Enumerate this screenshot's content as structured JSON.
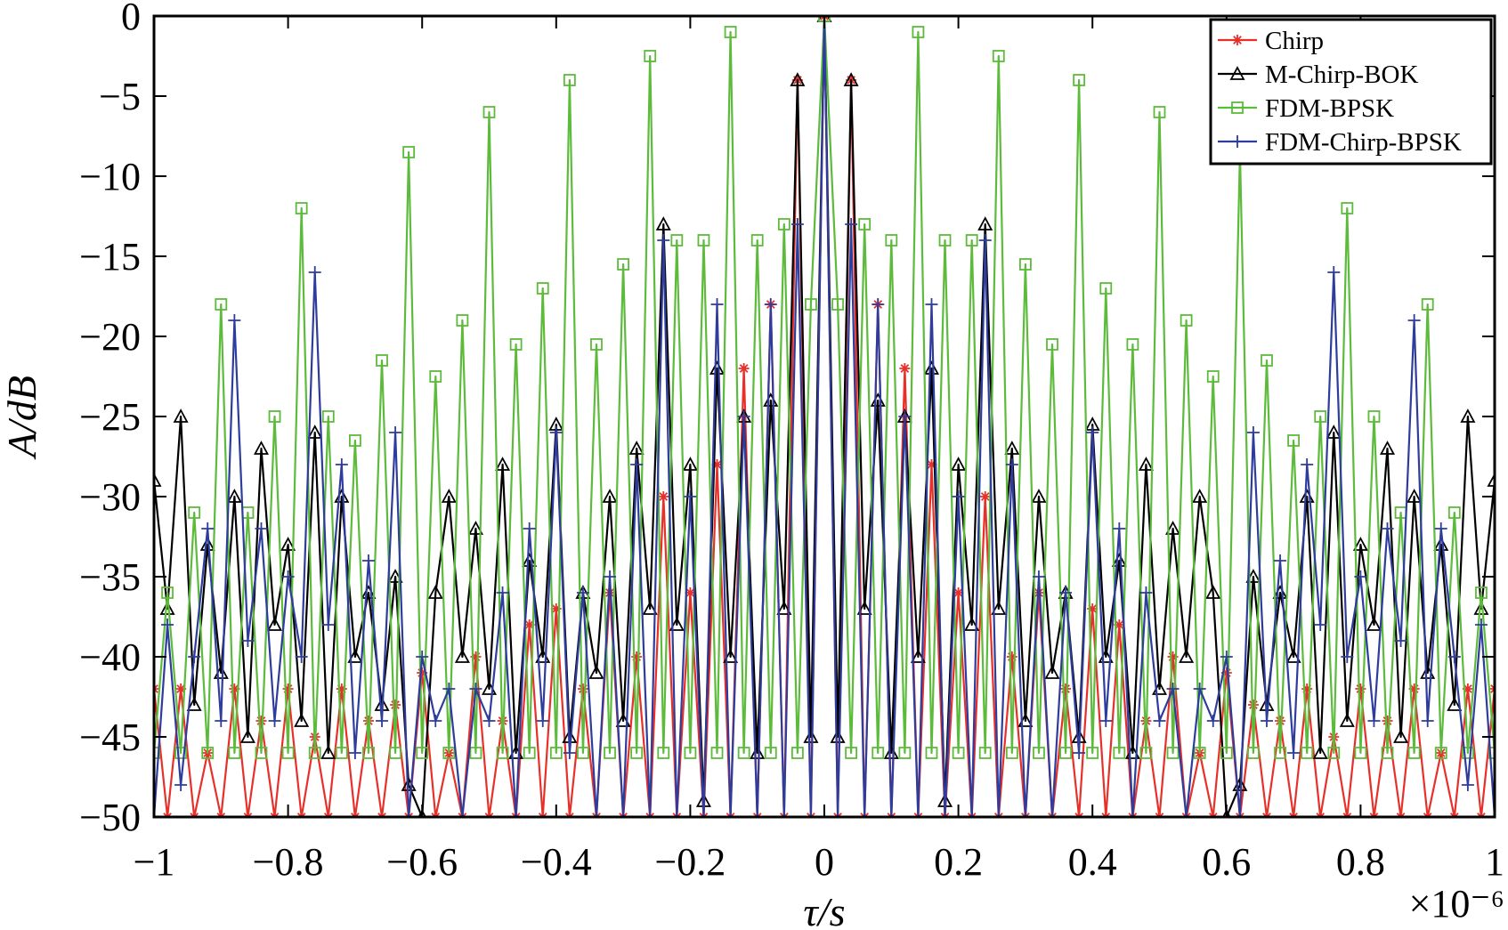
{
  "chart_data": {
    "type": "line",
    "xlabel": "τ/s",
    "ylabel": "A/dB",
    "x_multiplier": "×10⁻⁶",
    "xlim": [
      -1,
      1
    ],
    "ylim": [
      -50,
      0
    ],
    "x_ticks": [
      "−1",
      "−0.8",
      "−0.6",
      "−0.4",
      "−0.2",
      "0",
      "0.2",
      "0.4",
      "0.6",
      "0.8",
      "1"
    ],
    "y_ticks": [
      "0",
      "−5",
      "−10",
      "−15",
      "−20",
      "−25",
      "−30",
      "−35",
      "−40",
      "−45",
      "−50"
    ],
    "legend_position": "top-right",
    "grid": false,
    "series": [
      {
        "name": "Chirp",
        "color": "#e8302a",
        "marker": "asterisk",
        "x": [
          -1.0,
          -0.98,
          -0.96,
          -0.94,
          -0.92,
          -0.9,
          -0.88,
          -0.86,
          -0.84,
          -0.82,
          -0.8,
          -0.78,
          -0.76,
          -0.74,
          -0.72,
          -0.7,
          -0.68,
          -0.66,
          -0.64,
          -0.62,
          -0.6,
          -0.58,
          -0.56,
          -0.54,
          -0.52,
          -0.5,
          -0.48,
          -0.46,
          -0.44,
          -0.42,
          -0.4,
          -0.38,
          -0.36,
          -0.34,
          -0.32,
          -0.3,
          -0.28,
          -0.26,
          -0.24,
          -0.22,
          -0.2,
          -0.18,
          -0.16,
          -0.14,
          -0.12,
          -0.1,
          -0.08,
          -0.06,
          -0.04,
          -0.02,
          0.0,
          0.02,
          0.04,
          0.06,
          0.08,
          0.1,
          0.12,
          0.14,
          0.16,
          0.18,
          0.2,
          0.22,
          0.24,
          0.26,
          0.28,
          0.3,
          0.32,
          0.34,
          0.36,
          0.38,
          0.4,
          0.42,
          0.44,
          0.46,
          0.48,
          0.5,
          0.52,
          0.54,
          0.56,
          0.58,
          0.6,
          0.62,
          0.64,
          0.66,
          0.68,
          0.7,
          0.72,
          0.74,
          0.76,
          0.78,
          0.8,
          0.82,
          0.84,
          0.86,
          0.88,
          0.9,
          0.92,
          0.94,
          0.96,
          0.98,
          1.0
        ],
        "y": [
          -42,
          -50,
          -42,
          -50,
          -46,
          -50,
          -42,
          -50,
          -44,
          -50,
          -42,
          -50,
          -45,
          -50,
          -42,
          -50,
          -44,
          -50,
          -43,
          -50,
          -41,
          -50,
          -46,
          -50,
          -40,
          -50,
          -44,
          -50,
          -38,
          -50,
          -37,
          -50,
          -42,
          -50,
          -36,
          -50,
          -40,
          -50,
          -30,
          -50,
          -36,
          -50,
          -28,
          -50,
          -22,
          -50,
          -18,
          -50,
          -4,
          -50,
          0,
          -50,
          -4,
          -50,
          -18,
          -50,
          -22,
          -50,
          -28,
          -50,
          -36,
          -50,
          -30,
          -50,
          -40,
          -50,
          -36,
          -50,
          -42,
          -50,
          -37,
          -50,
          -38,
          -50,
          -44,
          -50,
          -40,
          -50,
          -46,
          -50,
          -41,
          -50,
          -43,
          -50,
          -44,
          -50,
          -42,
          -50,
          -45,
          -50,
          -42,
          -50,
          -44,
          -50,
          -42,
          -50,
          -46,
          -50,
          -42,
          -50,
          -42
        ]
      },
      {
        "name": "M-Chirp-BOK",
        "color": "#000000",
        "marker": "triangle",
        "x": [
          -1.0,
          -0.98,
          -0.96,
          -0.94,
          -0.92,
          -0.9,
          -0.88,
          -0.86,
          -0.84,
          -0.82,
          -0.8,
          -0.78,
          -0.76,
          -0.74,
          -0.72,
          -0.7,
          -0.68,
          -0.66,
          -0.64,
          -0.62,
          -0.6,
          -0.58,
          -0.56,
          -0.54,
          -0.52,
          -0.5,
          -0.48,
          -0.46,
          -0.44,
          -0.42,
          -0.4,
          -0.38,
          -0.36,
          -0.34,
          -0.32,
          -0.3,
          -0.28,
          -0.26,
          -0.24,
          -0.22,
          -0.2,
          -0.18,
          -0.16,
          -0.14,
          -0.12,
          -0.1,
          -0.08,
          -0.06,
          -0.04,
          -0.02,
          0.0,
          0.02,
          0.04,
          0.06,
          0.08,
          0.1,
          0.12,
          0.14,
          0.16,
          0.18,
          0.2,
          0.22,
          0.24,
          0.26,
          0.28,
          0.3,
          0.32,
          0.34,
          0.36,
          0.38,
          0.4,
          0.42,
          0.44,
          0.46,
          0.48,
          0.5,
          0.52,
          0.54,
          0.56,
          0.58,
          0.6,
          0.62,
          0.64,
          0.66,
          0.68,
          0.7,
          0.72,
          0.74,
          0.76,
          0.78,
          0.8,
          0.82,
          0.84,
          0.86,
          0.88,
          0.9,
          0.92,
          0.94,
          0.96,
          0.98,
          1.0
        ],
        "y": [
          -29,
          -37,
          -25,
          -43,
          -33,
          -41,
          -30,
          -45,
          -27,
          -38,
          -33,
          -44,
          -26,
          -46,
          -30,
          -40,
          -36,
          -43,
          -35,
          -48,
          -50,
          -36,
          -30,
          -40,
          -32,
          -42,
          -28,
          -46,
          -34,
          -40,
          -25.5,
          -45,
          -36,
          -41,
          -30,
          -44,
          -27,
          -37,
          -13,
          -38,
          -28,
          -49,
          -22,
          -40,
          -25,
          -46,
          -24,
          -37,
          -4,
          -45,
          0,
          -45,
          -4,
          -37,
          -24,
          -46,
          -25,
          -40,
          -22,
          -49,
          -28,
          -38,
          -13,
          -37,
          -27,
          -44,
          -30,
          -41,
          -36,
          -45,
          -25.5,
          -40,
          -34,
          -46,
          -28,
          -42,
          -32,
          -40,
          -30,
          -36,
          -50,
          -48,
          -35,
          -43,
          -36,
          -40,
          -30,
          -46,
          -26,
          -44,
          -33,
          -38,
          -27,
          -45,
          -30,
          -41,
          -33,
          -43,
          -25,
          -37,
          -29
        ]
      },
      {
        "name": "FDM-BPSK",
        "color": "#5dbb3b",
        "marker": "square",
        "x": [
          -1.0,
          -0.98,
          -0.96,
          -0.94,
          -0.92,
          -0.9,
          -0.88,
          -0.86,
          -0.84,
          -0.82,
          -0.8,
          -0.78,
          -0.76,
          -0.74,
          -0.72,
          -0.7,
          -0.68,
          -0.66,
          -0.64,
          -0.62,
          -0.6,
          -0.58,
          -0.56,
          -0.54,
          -0.52,
          -0.5,
          -0.48,
          -0.46,
          -0.44,
          -0.42,
          -0.4,
          -0.38,
          -0.36,
          -0.34,
          -0.32,
          -0.3,
          -0.28,
          -0.26,
          -0.24,
          -0.22,
          -0.2,
          -0.18,
          -0.16,
          -0.14,
          -0.12,
          -0.1,
          -0.08,
          -0.06,
          -0.04,
          -0.02,
          0.0,
          0.02,
          0.04,
          0.06,
          0.08,
          0.1,
          0.12,
          0.14,
          0.16,
          0.18,
          0.2,
          0.22,
          0.24,
          0.26,
          0.28,
          0.3,
          0.32,
          0.34,
          0.36,
          0.38,
          0.4,
          0.42,
          0.44,
          0.46,
          0.48,
          0.5,
          0.52,
          0.54,
          0.56,
          0.58,
          0.6,
          0.62,
          0.64,
          0.66,
          0.68,
          0.7,
          0.72,
          0.74,
          0.76,
          0.78,
          0.8,
          0.82,
          0.84,
          0.86,
          0.88,
          0.9,
          0.92,
          0.94,
          0.96,
          0.98,
          1.0
        ],
        "y": [
          -46,
          -36,
          -46,
          -31,
          -46,
          -18,
          -46,
          -31,
          -46,
          -25,
          -46,
          -12,
          -46,
          -25,
          -46,
          -26.5,
          -46,
          -21.5,
          -46,
          -8.5,
          -46,
          -22.5,
          -46,
          -19,
          -46,
          -6,
          -46,
          -20.5,
          -46,
          -17,
          -46,
          -4,
          -46,
          -20.5,
          -46,
          -15.5,
          -46,
          -2.5,
          -46,
          -14,
          -46,
          -14,
          -46,
          -1,
          -46,
          -14,
          -46,
          -13,
          -46,
          -18,
          0,
          -18,
          -46,
          -13,
          -46,
          -14,
          -46,
          -1,
          -46,
          -14,
          -46,
          -14,
          -46,
          -2.5,
          -46,
          -15.5,
          -46,
          -20.5,
          -46,
          -4,
          -46,
          -17,
          -46,
          -20.5,
          -46,
          -6,
          -46,
          -19,
          -46,
          -22.5,
          -46,
          -8.5,
          -46,
          -21.5,
          -46,
          -26.5,
          -46,
          -25,
          -46,
          -12,
          -46,
          -25,
          -46,
          -31,
          -46,
          -18,
          -46,
          -31,
          -46,
          -36,
          -46
        ]
      },
      {
        "name": "FDM-Chirp-BPSK",
        "color": "#2e3c9c",
        "marker": "plus",
        "x": [
          -1.0,
          -0.98,
          -0.96,
          -0.94,
          -0.92,
          -0.9,
          -0.88,
          -0.86,
          -0.84,
          -0.82,
          -0.8,
          -0.78,
          -0.76,
          -0.74,
          -0.72,
          -0.7,
          -0.68,
          -0.66,
          -0.64,
          -0.62,
          -0.6,
          -0.58,
          -0.56,
          -0.54,
          -0.52,
          -0.5,
          -0.48,
          -0.46,
          -0.44,
          -0.42,
          -0.4,
          -0.38,
          -0.36,
          -0.34,
          -0.32,
          -0.3,
          -0.28,
          -0.26,
          -0.24,
          -0.22,
          -0.2,
          -0.18,
          -0.16,
          -0.14,
          -0.12,
          -0.1,
          -0.08,
          -0.06,
          -0.04,
          -0.02,
          0.0,
          0.02,
          0.04,
          0.06,
          0.08,
          0.1,
          0.12,
          0.14,
          0.16,
          0.18,
          0.2,
          0.22,
          0.24,
          0.26,
          0.28,
          0.3,
          0.32,
          0.34,
          0.36,
          0.38,
          0.4,
          0.42,
          0.44,
          0.46,
          0.48,
          0.5,
          0.52,
          0.54,
          0.56,
          0.58,
          0.6,
          0.62,
          0.64,
          0.66,
          0.68,
          0.7,
          0.72,
          0.74,
          0.76,
          0.78,
          0.8,
          0.82,
          0.84,
          0.86,
          0.88,
          0.9,
          0.92,
          0.94,
          0.96,
          0.98,
          1.0
        ],
        "y": [
          -50,
          -38,
          -48,
          -40,
          -32,
          -44,
          -19,
          -39,
          -32,
          -44,
          -35,
          -40,
          -16,
          -38,
          -28,
          -46,
          -34,
          -44,
          -26,
          -50,
          -40,
          -44,
          -42,
          -50,
          -42,
          -44,
          -36,
          -50,
          -32,
          -44,
          -26,
          -46,
          -36,
          -50,
          -35,
          -50,
          -28,
          -50,
          -14,
          -50,
          -30,
          -50,
          -18,
          -50,
          -25,
          -50,
          -18,
          -50,
          -13,
          -50,
          0,
          -50,
          -13,
          -50,
          -18,
          -50,
          -25,
          -50,
          -18,
          -50,
          -30,
          -50,
          -14,
          -50,
          -28,
          -50,
          -35,
          -50,
          -36,
          -46,
          -26,
          -44,
          -32,
          -50,
          -36,
          -44,
          -42,
          -50,
          -42,
          -44,
          -40,
          -50,
          -26,
          -44,
          -34,
          -46,
          -28,
          -38,
          -16,
          -40,
          -35,
          -44,
          -32,
          -39,
          -19,
          -44,
          -32,
          -40,
          -48,
          -38,
          -50
        ]
      }
    ]
  }
}
